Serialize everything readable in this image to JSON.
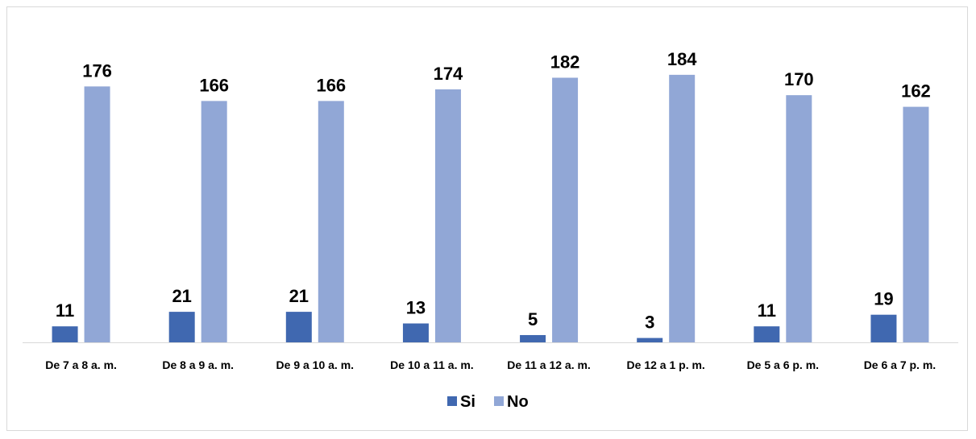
{
  "chart_data": {
    "type": "bar",
    "categories": [
      "De 7 a 8 a. m.",
      "De 8 a 9 a. m.",
      "De 9 a 10 a. m.",
      "De 10 a 11 a. m.",
      "De 11 a 12 a. m.",
      "De 12 a 1 p. m.",
      "De 5 a 6 p. m.",
      "De 6 a 7 p. m."
    ],
    "series": [
      {
        "name": "Si",
        "color": "#4068b0",
        "values": [
          11,
          21,
          21,
          13,
          5,
          3,
          11,
          19
        ]
      },
      {
        "name": "No",
        "color": "#91a7d6",
        "values": [
          176,
          166,
          166,
          174,
          182,
          184,
          170,
          162
        ]
      }
    ],
    "title": "",
    "xlabel": "",
    "ylabel": "",
    "ylim": [
      0,
      200
    ],
    "grid": false,
    "data_labels": true,
    "legend_position": "bottom"
  }
}
